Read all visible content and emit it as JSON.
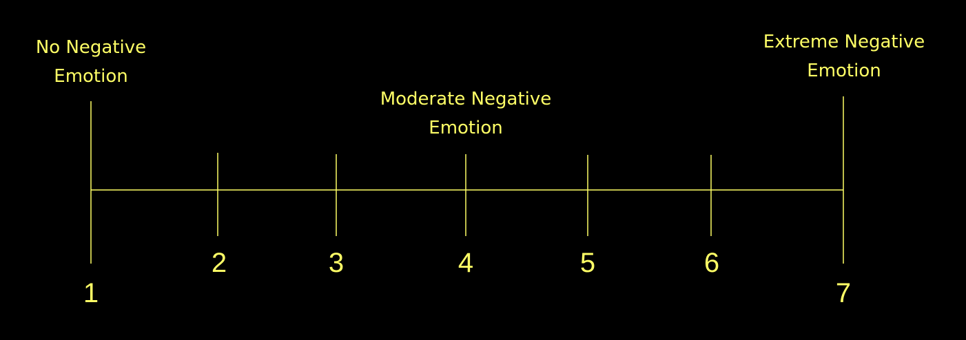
{
  "colors": {
    "background": "#000000",
    "accent": "#ffff66"
  },
  "labels": {
    "low": {
      "line1": "No Negative",
      "line2": "Emotion"
    },
    "mid": {
      "line1": "Moderate Negative",
      "line2": "Emotion"
    },
    "high": {
      "line1": "Extreme Negative",
      "line2": "Emotion"
    }
  },
  "scale": {
    "values": [
      "1",
      "2",
      "3",
      "4",
      "5",
      "6",
      "7"
    ]
  }
}
